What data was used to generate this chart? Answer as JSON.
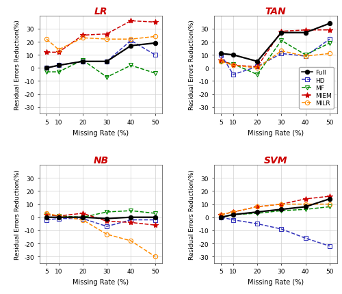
{
  "x": [
    5,
    10,
    20,
    30,
    40,
    50
  ],
  "LR": {
    "Full": [
      0,
      2,
      5,
      5,
      17,
      19
    ],
    "HD": [
      0,
      2,
      5,
      5,
      21,
      10
    ],
    "MF": [
      -3,
      -3,
      6,
      -7,
      2,
      -4
    ],
    "MIEM": [
      12,
      12,
      25,
      26,
      36,
      35
    ],
    "MILR": [
      22,
      14,
      23,
      22,
      22,
      24
    ]
  },
  "TAN": {
    "Full": [
      11,
      10,
      5,
      27,
      27,
      34
    ],
    "HD": [
      10,
      -5,
      1,
      11,
      9,
      22
    ],
    "MF": [
      5,
      3,
      -5,
      21,
      10,
      19
    ],
    "MIEM": [
      6,
      2,
      1,
      28,
      29,
      29
    ],
    "MILR": [
      5,
      2,
      0,
      13,
      9,
      11
    ]
  },
  "NB": {
    "Full": [
      0,
      0,
      0,
      -1,
      0,
      0
    ],
    "HD": [
      -2,
      -1,
      -1,
      -7,
      -2,
      -2
    ],
    "MF": [
      2,
      1,
      0,
      4,
      5,
      3
    ],
    "MIEM": [
      2,
      1,
      3,
      -3,
      -4,
      -6
    ],
    "MILR": [
      3,
      1,
      -2,
      -13,
      -18,
      -30
    ]
  },
  "SVM": {
    "Full": [
      0,
      2,
      4,
      6,
      8,
      14
    ],
    "HD": [
      0,
      -2,
      -5,
      -9,
      -16,
      -22
    ],
    "MF": [
      0,
      2,
      3,
      5,
      6,
      8
    ],
    "MIEM": [
      2,
      4,
      8,
      10,
      14,
      16
    ],
    "MILR": [
      2,
      4,
      8,
      10,
      10,
      10
    ]
  },
  "colors": {
    "Full": "#000000",
    "HD": "#3333bb",
    "MF": "#008800",
    "MIEM": "#cc0000",
    "MILR": "#ff8c00"
  },
  "markers": {
    "Full": "o",
    "HD": "s",
    "MF": "v",
    "MIEM": "*",
    "MILR": "o"
  },
  "linestyles": {
    "Full": "-",
    "HD": "--",
    "MF": "--",
    "MIEM": "--",
    "MILR": "--"
  },
  "ylim": [
    -35,
    40
  ],
  "yticks": [
    -30,
    -20,
    -10,
    0,
    10,
    20,
    30
  ],
  "subplot_keys": [
    "LR",
    "TAN",
    "NB",
    "SVM"
  ],
  "subplot_title_color": "#cc0000",
  "xlabel": "Missing Rate (%)",
  "ylabel": "Residual Errors Reduction(%)",
  "legend_subplot": "TAN"
}
